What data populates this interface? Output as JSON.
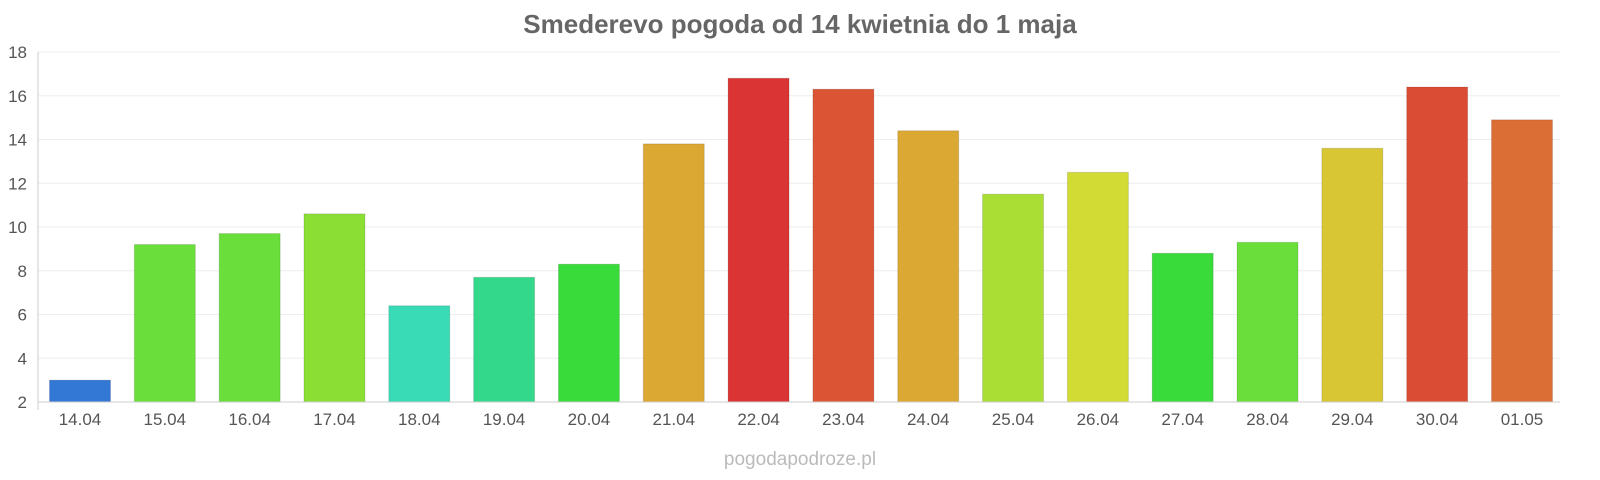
{
  "chart_data": {
    "type": "bar",
    "title": "Smederevo pogoda od 14 kwietnia do 1 maja",
    "xlabel": "",
    "ylabel": "",
    "ylim": [
      2,
      18
    ],
    "yticks": [
      2,
      4,
      6,
      8,
      10,
      12,
      14,
      16,
      18
    ],
    "grid": true,
    "categories": [
      "14.04",
      "15.04",
      "16.04",
      "17.04",
      "18.04",
      "19.04",
      "20.04",
      "21.04",
      "22.04",
      "23.04",
      "24.04",
      "25.04",
      "26.04",
      "27.04",
      "28.04",
      "29.04",
      "30.04",
      "01.05"
    ],
    "values": [
      3.0,
      9.2,
      9.7,
      10.6,
      6.4,
      7.7,
      8.3,
      13.8,
      16.8,
      16.3,
      14.4,
      11.5,
      12.5,
      8.8,
      9.3,
      13.6,
      16.4,
      14.9
    ],
    "colors": [
      "#3478d6",
      "#6ade3a",
      "#6ade3a",
      "#8ade34",
      "#38dbb5",
      "#34d88a",
      "#38db3a",
      "#dba834",
      "#db3434",
      "#db5534",
      "#dba834",
      "#aade34",
      "#d2db34",
      "#38db3a",
      "#6ade3a",
      "#d9c634",
      "#db4c34",
      "#db6e34"
    ]
  },
  "watermark": "pogodapodroze.pl"
}
